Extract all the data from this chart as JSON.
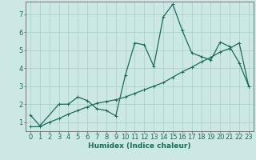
{
  "xlabel": "Humidex (Indice chaleur)",
  "x_values": [
    0,
    1,
    2,
    3,
    4,
    5,
    6,
    7,
    8,
    9,
    10,
    11,
    12,
    13,
    14,
    15,
    16,
    17,
    18,
    19,
    20,
    21,
    22,
    23
  ],
  "line1_y": [
    1.4,
    0.8,
    null,
    2.0,
    2.0,
    2.4,
    2.2,
    1.75,
    1.65,
    1.35,
    3.6,
    5.4,
    5.3,
    4.1,
    6.85,
    7.55,
    6.1,
    4.85,
    4.65,
    4.45,
    5.45,
    5.2,
    4.3,
    3.0
  ],
  "line2_y": [
    0.75,
    0.75,
    1.0,
    1.2,
    1.45,
    1.65,
    1.85,
    2.05,
    2.15,
    2.25,
    2.4,
    2.6,
    2.8,
    3.0,
    3.2,
    3.5,
    3.8,
    4.05,
    4.35,
    4.6,
    4.9,
    5.1,
    5.4,
    3.0
  ],
  "line_color": "#1a6b5a",
  "bg_color": "#cce8e4",
  "grid_color": "#aaccca",
  "ylim": [
    0.5,
    7.7
  ],
  "xlim": [
    -0.5,
    23.5
  ],
  "yticks": [
    1,
    2,
    3,
    4,
    5,
    6,
    7
  ],
  "xticks": [
    0,
    1,
    2,
    3,
    4,
    5,
    6,
    7,
    8,
    9,
    10,
    11,
    12,
    13,
    14,
    15,
    16,
    17,
    18,
    19,
    20,
    21,
    22,
    23
  ],
  "xlabel_fontsize": 6.5,
  "tick_fontsize": 6.0,
  "line_width": 0.9,
  "marker_size": 2.0
}
